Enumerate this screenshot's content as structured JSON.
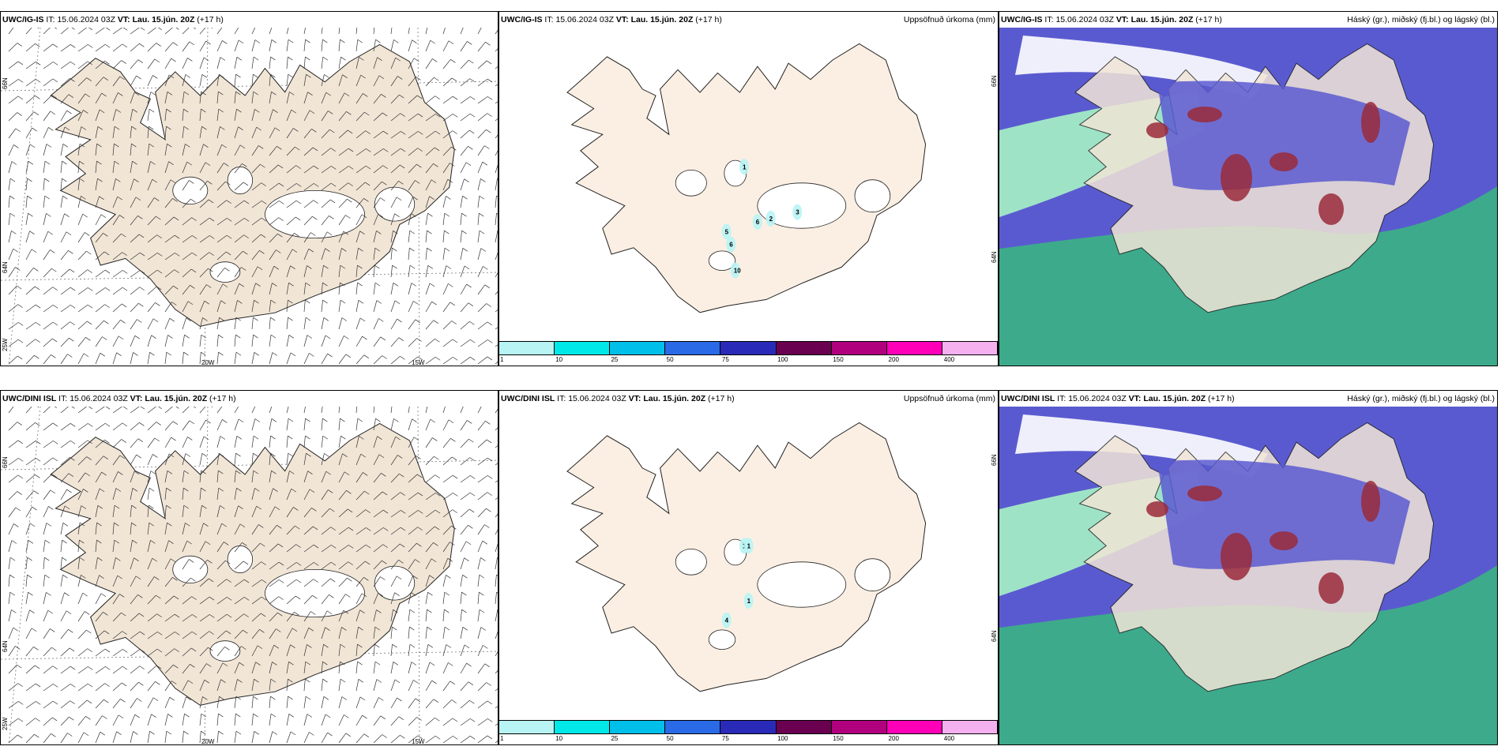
{
  "rows": [
    {
      "model": "UWC/IG-IS",
      "wind_title": {
        "model": "UWC/IG-IS",
        "it_label": "IT:",
        "it_value": "15.06.2024 03Z",
        "vt_label": "VT:",
        "vt_value": "Lau. 15.jún. 20Z",
        "lead": "(+17 h)"
      },
      "precip_title": {
        "model": "UWC/IG-IS",
        "it_label": "IT:",
        "it_value": "15.06.2024 03Z",
        "vt_label": "VT:",
        "vt_value": "Lau. 15.jún. 20Z",
        "lead": "(+17 h)",
        "right": "Uppsöfnuð úrkoma (mm)"
      },
      "cloud_title": {
        "model": "UWC/IG-IS",
        "it_label": "IT:",
        "it_value": "15.06.2024 03Z",
        "vt_label": "VT:",
        "vt_value": "Lau. 15.jún. 20Z",
        "lead": "(+17 h)",
        "right": "Háský (gr.), miðský (fj.bl.) og lágský (bl.)"
      },
      "precip_labels": [
        "1",
        "6",
        "2",
        "3",
        "5",
        "6",
        "10"
      ]
    },
    {
      "model": "UWC/DINI ISL",
      "wind_title": {
        "model": "UWC/DINI ISL",
        "it_label": "IT:",
        "it_value": "15.06.2024 03Z",
        "vt_label": "VT:",
        "vt_value": "Lau. 15.jún. 20Z",
        "lead": "(+17 h)"
      },
      "precip_title": {
        "model": "UWC/DINI ISL",
        "it_label": "IT:",
        "it_value": "15.06.2024 03Z",
        "vt_label": "VT:",
        "vt_value": "Lau. 15.jún. 20Z",
        "lead": "(+17 h)",
        "right": "Uppsöfnuð úrkoma (mm)"
      },
      "cloud_title": {
        "model": "UWC/DINI ISL",
        "it_label": "IT:",
        "it_value": "15.06.2024 03Z",
        "vt_label": "VT:",
        "vt_value": "Lau. 15.jún. 20Z",
        "lead": "(+17 h)",
        "right": "Háský (gr.), miðský (fj.bl.) og lágský (bl.)"
      },
      "precip_labels": [
        "1",
        "1",
        "1",
        "4"
      ]
    }
  ],
  "wind_axis": {
    "lon": [
      "20W",
      "15W"
    ],
    "lat": [
      "66N",
      "64N",
      "25W"
    ]
  },
  "precip_lat": [
    "66N",
    "64N"
  ],
  "legend": {
    "ticks": [
      "1",
      "10",
      "25",
      "50",
      "75",
      "100",
      "150",
      "200",
      "400"
    ],
    "colors": [
      "#b8f4f4",
      "#00e8e8",
      "#00bfe8",
      "#2a6ae6",
      "#2a2ab8",
      "#6a0050",
      "#b0007e",
      "#ff00b8",
      "#f5b0f0"
    ]
  },
  "colors": {
    "land": "#f1e5d6",
    "land_precip": "#fbefe3",
    "high_cloud": "#5a5ad0",
    "low_cloud": "#3eaa8c",
    "low_light": "#9fe3c7",
    "mid_cloud": "#9a2a3a"
  }
}
